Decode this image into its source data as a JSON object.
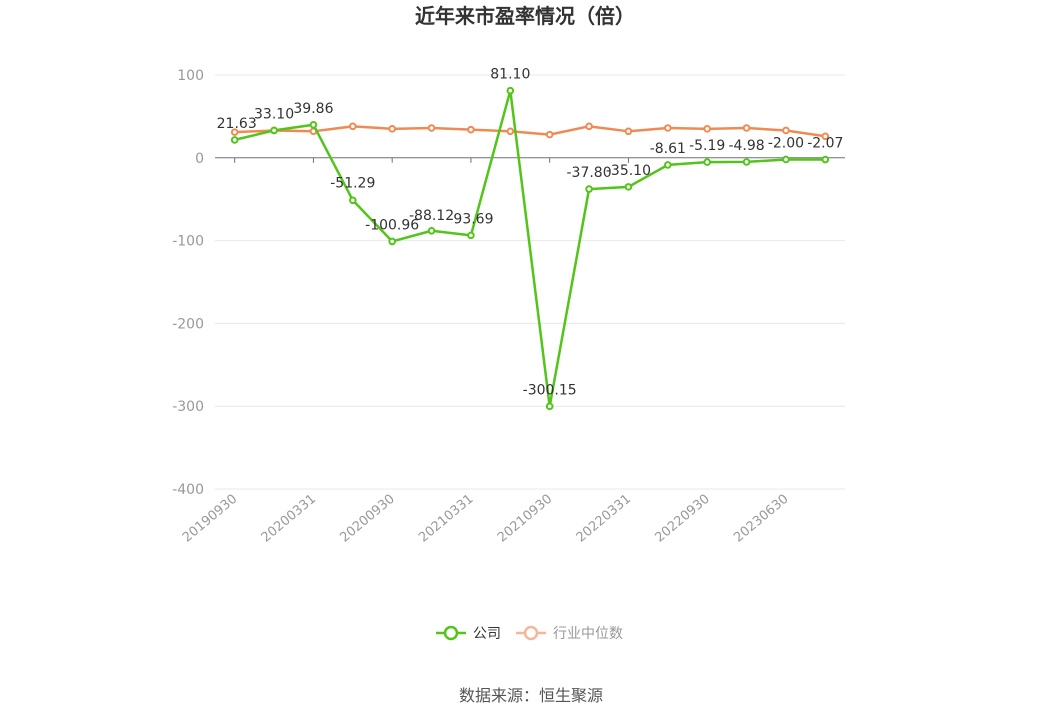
{
  "chart_data": {
    "type": "line",
    "title": "近年来市盈率情况（倍）",
    "x_ticks": [
      "20190930",
      "20200331",
      "20200930",
      "20210331",
      "20210930",
      "20220331",
      "20220930",
      "20230630"
    ],
    "y_ticks": [
      "100",
      "0",
      "-100",
      "-200",
      "-300",
      "-400"
    ],
    "ylim": [
      -400,
      100
    ],
    "grid": true,
    "legend_position": "bottom",
    "series": [
      {
        "name": "公司",
        "color": "#52c41a",
        "values": [
          21.63,
          33.1,
          39.86,
          -51.29,
          -100.96,
          -88.12,
          -93.69,
          81.1,
          -300.15,
          -37.8,
          -35.1,
          -8.61,
          -5.19,
          -4.98,
          -2.0,
          -2.07
        ],
        "labels": [
          "21.63",
          "33.10",
          "39.86",
          "-51.29",
          "-100.96",
          "-88.12",
          "-93.69",
          "81.10",
          "-300.15",
          "-37.80",
          "-35.10",
          "-8.61",
          "-5.19",
          "-4.98",
          "-2.00",
          "-2.07"
        ]
      },
      {
        "name": "行业中位数",
        "color": "#f08a55",
        "values": [
          31,
          33,
          32,
          38,
          35,
          36,
          34,
          32,
          28,
          38,
          32,
          36,
          35,
          36,
          33,
          26
        ]
      }
    ],
    "source": "数据来源：恒生聚源"
  }
}
